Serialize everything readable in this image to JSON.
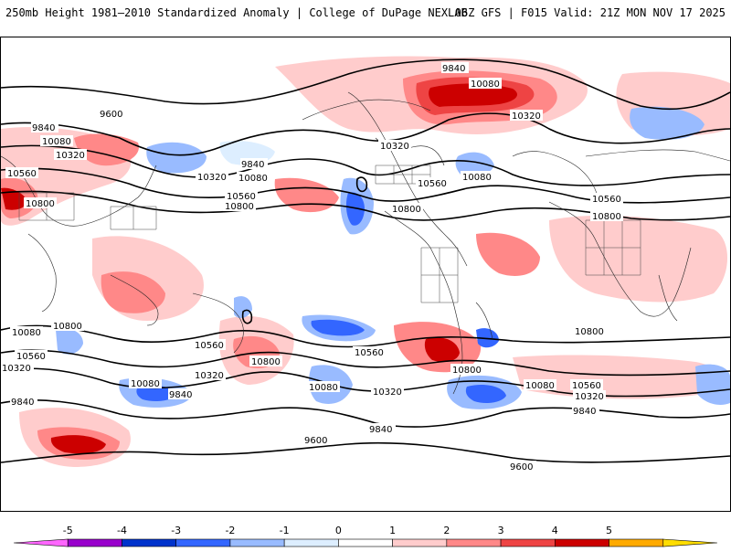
{
  "header": {
    "title_left": "250mb Height 1981–2010 Standardized Anomaly | College of DuPage NEXLAB",
    "title_right": "06Z GFS | F015 Valid: 21Z MON NOV 17 2025"
  },
  "contour_labels": [
    "9840",
    "9600",
    "10080",
    "9840",
    "10320",
    "10080",
    "10560",
    "10800",
    "10080",
    "10320",
    "10320",
    "10080",
    "9840",
    "10560",
    "10800",
    "10560",
    "10800",
    "10320",
    "10080",
    "10560",
    "10800",
    "10800",
    "10560",
    "10320",
    "10800",
    "10560",
    "10320",
    "10800",
    "10080",
    "9840",
    "10080",
    "10320",
    "10560",
    "10800",
    "10560",
    "10800",
    "10080",
    "10320",
    "9840",
    "10080",
    "10320",
    "9840",
    "9600",
    "9600",
    "9840"
  ],
  "colorbar": {
    "ticks": [
      "-5",
      "-4",
      "-3",
      "-2",
      "-1",
      "0",
      "1",
      "2",
      "3",
      "4",
      "5"
    ],
    "colors": [
      "#ff66ff",
      "#9900cc",
      "#0033cc",
      "#3366ff",
      "#99bbff",
      "#ddeeff",
      "#ffffff",
      "#ffcccc",
      "#ff8888",
      "#ee4444",
      "#cc0000",
      "#ffaa00",
      "#ffdd00"
    ],
    "units": "standardized anomaly"
  }
}
